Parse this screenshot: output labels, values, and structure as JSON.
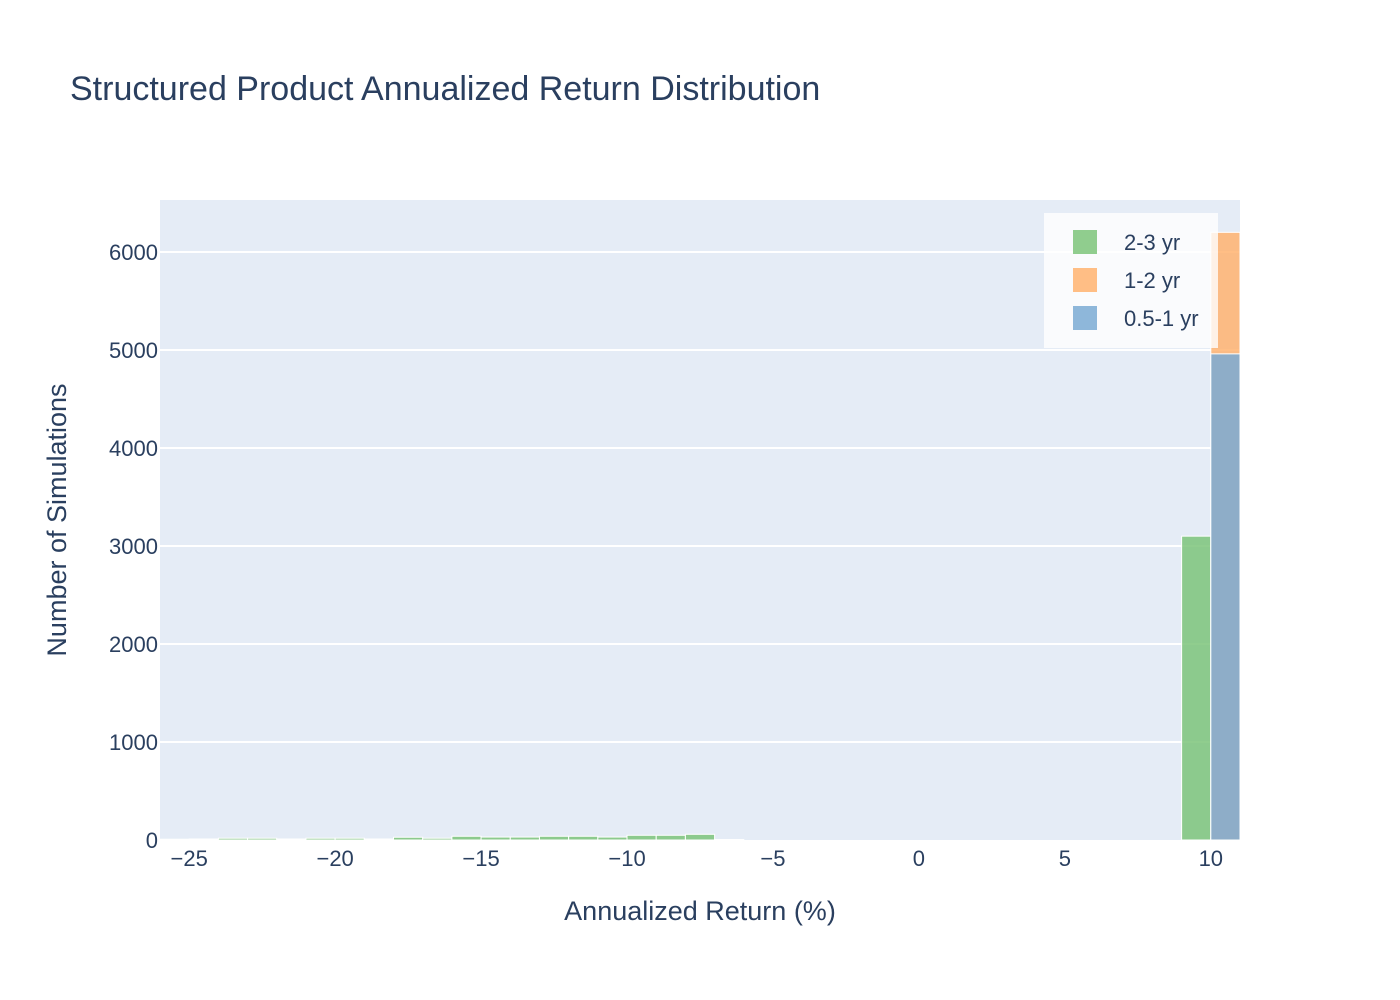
{
  "chart_data": {
    "type": "bar",
    "barmode": "overlay",
    "title": "Structured Product Annualized Return Distribution",
    "xlabel": "Annualized Return (%)",
    "ylabel": "Number of Simulations",
    "xlim": [
      -26,
      11
    ],
    "ylim": [
      0,
      6530
    ],
    "xticks": [
      -25,
      -20,
      -15,
      -10,
      -5,
      0,
      5,
      10
    ],
    "xtick_labels": [
      "−25",
      "−20",
      "−15",
      "−10",
      "−5",
      "0",
      "5",
      "10"
    ],
    "yticks": [
      0,
      1000,
      2000,
      3000,
      4000,
      5000,
      6000
    ],
    "grid": true,
    "legend_position": "top-right",
    "bin_width": 1,
    "series": [
      {
        "name": "2-3 yr",
        "color": "#7cc47a",
        "bins": [
          [
            -26,
            8
          ],
          [
            -25,
            10
          ],
          [
            -24,
            18
          ],
          [
            -23,
            18
          ],
          [
            -22,
            10
          ],
          [
            -21,
            18
          ],
          [
            -20,
            18
          ],
          [
            -19,
            10
          ],
          [
            -18,
            28
          ],
          [
            -17,
            18
          ],
          [
            -16,
            38
          ],
          [
            -15,
            30
          ],
          [
            -14,
            30
          ],
          [
            -13,
            38
          ],
          [
            -12,
            38
          ],
          [
            -11,
            30
          ],
          [
            -10,
            48
          ],
          [
            -9,
            48
          ],
          [
            -8,
            58
          ],
          [
            -7,
            5
          ],
          [
            9,
            3100
          ],
          [
            10,
            15
          ]
        ]
      },
      {
        "name": "1-2 yr",
        "color": "#ffb370",
        "bins": [
          [
            10,
            6200
          ]
        ]
      },
      {
        "name": "0.5-1 yr",
        "color": "#7aaad4",
        "bins": [
          [
            10,
            4960
          ]
        ]
      }
    ]
  }
}
